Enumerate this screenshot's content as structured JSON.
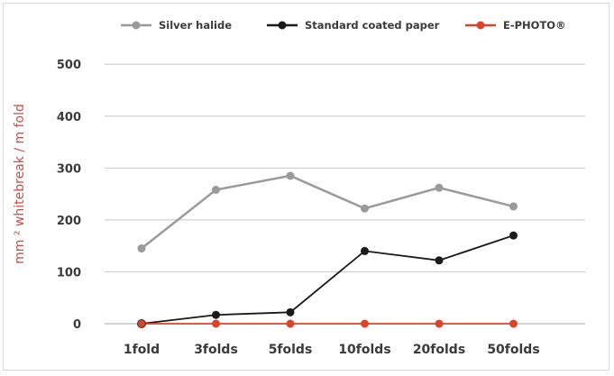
{
  "chart_data": {
    "type": "line",
    "ylabel": "mm ² whitebreak / m fold",
    "categories": [
      "1fold",
      "3folds",
      "5folds",
      "10folds",
      "20folds",
      "50folds"
    ],
    "ylim": [
      0,
      550
    ],
    "yticks": [
      0,
      100,
      200,
      300,
      400,
      500
    ],
    "grid": true,
    "legend_position": "top",
    "series": [
      {
        "name": "Silver halide",
        "color": "#9a9a9a",
        "values": [
          145,
          258,
          285,
          222,
          262,
          226
        ]
      },
      {
        "name": "Standard coated paper",
        "color": "#1a1a1a",
        "values": [
          0,
          17,
          22,
          140,
          122,
          170
        ]
      },
      {
        "name": "E-PHOTO®",
        "color": "#d9452b",
        "values": [
          0,
          0,
          0,
          0,
          0,
          0
        ]
      }
    ]
  }
}
